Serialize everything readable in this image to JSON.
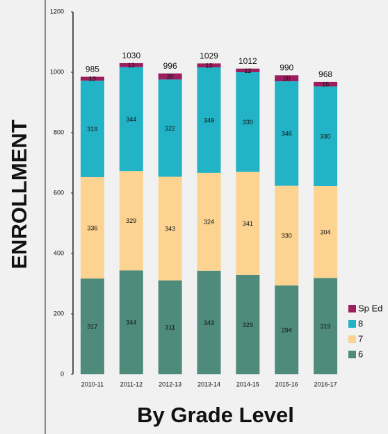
{
  "chart_data": {
    "type": "stacked_bar",
    "ylabel": "ENROLLMENT",
    "xlabel": "By Grade Level",
    "categories": [
      "2010-11",
      "2011-12",
      "2012-13",
      "2013-14",
      "2014-15",
      "2015-16",
      "2016-17"
    ],
    "series": [
      {
        "name": "6",
        "color": "#4f8b7b",
        "values": [
          317,
          344,
          311,
          343,
          329,
          294,
          319
        ]
      },
      {
        "name": "7",
        "color": "#fdd391",
        "values": [
          336,
          329,
          343,
          324,
          341,
          330,
          304
        ]
      },
      {
        "name": "8",
        "color": "#22b3c6",
        "values": [
          319,
          344,
          322,
          349,
          330,
          346,
          330
        ]
      },
      {
        "name": "Sp Ed",
        "color": "#9b1e5f",
        "values": [
          13,
          13,
          20,
          13,
          12,
          20,
          15
        ]
      }
    ],
    "totals": [
      985,
      1030,
      996,
      1029,
      1012,
      990,
      968
    ],
    "ylim": [
      0,
      1200
    ],
    "yticks": [
      0,
      200,
      400,
      600,
      800,
      1000,
      1200
    ]
  }
}
